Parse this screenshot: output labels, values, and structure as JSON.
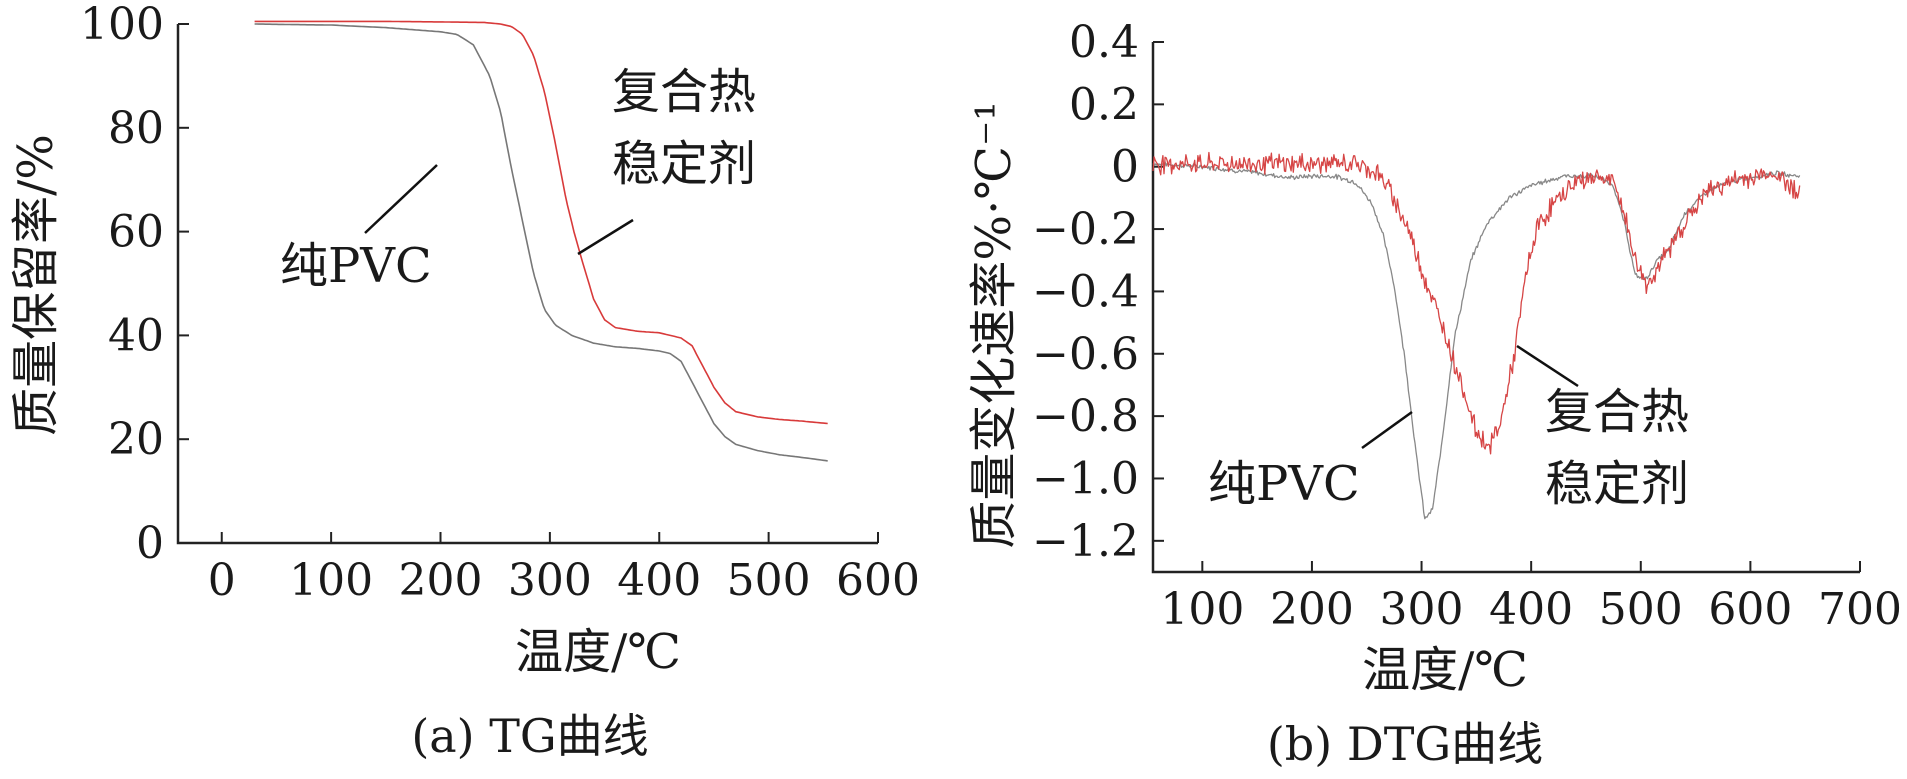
{
  "chart_data": [
    {
      "type": "line",
      "caption": "(a) TG曲线",
      "xlabel": "温度/℃",
      "ylabel": "质量保留率/%",
      "xlim": [
        -40,
        600
      ],
      "ylim": [
        0,
        100
      ],
      "xticks": [
        0,
        100,
        200,
        300,
        400,
        500,
        600
      ],
      "yticks": [
        0,
        20,
        40,
        60,
        80,
        100
      ],
      "grid": false,
      "legend": "none",
      "annotations": [
        {
          "text": "纯PVC",
          "series": "pure_pvc"
        },
        {
          "text": "复合热\n稳定剂",
          "series": "composite"
        }
      ],
      "series": [
        {
          "key": "pure_pvc",
          "color": "#777777",
          "points": [
            [
              30,
              100
            ],
            [
              60,
              99.9
            ],
            [
              100,
              99.8
            ],
            [
              150,
              99.3
            ],
            [
              200,
              98.5
            ],
            [
              215,
              98.0
            ],
            [
              230,
              96
            ],
            [
              245,
              90
            ],
            [
              255,
              83
            ],
            [
              265,
              72
            ],
            [
              275,
              62
            ],
            [
              285,
              52
            ],
            [
              295,
              45
            ],
            [
              305,
              42
            ],
            [
              320,
              40
            ],
            [
              340,
              38.5
            ],
            [
              360,
              37.8
            ],
            [
              380,
              37.5
            ],
            [
              400,
              37
            ],
            [
              410,
              36.5
            ],
            [
              420,
              35
            ],
            [
              430,
              31
            ],
            [
              440,
              27
            ],
            [
              450,
              23
            ],
            [
              460,
              20.5
            ],
            [
              470,
              19
            ],
            [
              490,
              17.8
            ],
            [
              510,
              17
            ],
            [
              530,
              16.5
            ],
            [
              555,
              15.8
            ]
          ]
        },
        {
          "key": "composite",
          "color": "#d83a3a",
          "points": [
            [
              30,
              100.5
            ],
            [
              80,
              100.5
            ],
            [
              150,
              100.5
            ],
            [
              200,
              100.4
            ],
            [
              240,
              100.3
            ],
            [
              255,
              100
            ],
            [
              265,
              99.5
            ],
            [
              275,
              98
            ],
            [
              285,
              94
            ],
            [
              295,
              87
            ],
            [
              305,
              77
            ],
            [
              315,
              66
            ],
            [
              322,
              60
            ],
            [
              330,
              54
            ],
            [
              340,
              47
            ],
            [
              350,
              43
            ],
            [
              360,
              41.5
            ],
            [
              380,
              40.8
            ],
            [
              400,
              40.5
            ],
            [
              420,
              39.5
            ],
            [
              430,
              38
            ],
            [
              440,
              34
            ],
            [
              450,
              30
            ],
            [
              460,
              27
            ],
            [
              470,
              25.3
            ],
            [
              490,
              24.3
            ],
            [
              510,
              23.8
            ],
            [
              530,
              23.5
            ],
            [
              555,
              23
            ]
          ]
        }
      ]
    },
    {
      "type": "line",
      "caption": "(b) DTG曲线",
      "xlabel": "温度/℃",
      "ylabel": "质量变化速率%·℃⁻¹",
      "xlim": [
        55,
        700
      ],
      "ylim": [
        -1.3,
        0.4
      ],
      "xticks": [
        100,
        200,
        300,
        400,
        500,
        600,
        700
      ],
      "yticks": [
        0.4,
        0.2,
        0,
        -0.2,
        -0.4,
        -0.6,
        -0.8,
        -1.0,
        -1.2
      ],
      "ytick_labels": [
        "0.4",
        "0.2",
        "0",
        "−0.2",
        "−0.4",
        "−0.6",
        "−0.8",
        "−1.0",
        "−1.2"
      ],
      "grid": false,
      "legend": "none",
      "annotations": [
        {
          "text": "纯PVC",
          "series": "pure_pvc"
        },
        {
          "text": "复合热\n稳定剂",
          "series": "composite"
        }
      ],
      "series": [
        {
          "key": "pure_pvc",
          "color": "#888888",
          "noise": 0.006,
          "points": [
            [
              55,
              0.01
            ],
            [
              100,
              0.0
            ],
            [
              150,
              -0.02
            ],
            [
              180,
              -0.035
            ],
            [
              200,
              -0.03
            ],
            [
              220,
              -0.03
            ],
            [
              240,
              -0.05
            ],
            [
              255,
              -0.12
            ],
            [
              265,
              -0.22
            ],
            [
              275,
              -0.38
            ],
            [
              285,
              -0.62
            ],
            [
              295,
              -0.92
            ],
            [
              303,
              -1.13
            ],
            [
              310,
              -1.1
            ],
            [
              318,
              -0.9
            ],
            [
              330,
              -0.55
            ],
            [
              345,
              -0.3
            ],
            [
              360,
              -0.18
            ],
            [
              380,
              -0.1
            ],
            [
              400,
              -0.06
            ],
            [
              430,
              -0.03
            ],
            [
              460,
              -0.03
            ],
            [
              475,
              -0.06
            ],
            [
              485,
              -0.18
            ],
            [
              495,
              -0.35
            ],
            [
              505,
              -0.36
            ],
            [
              515,
              -0.3
            ],
            [
              525,
              -0.27
            ],
            [
              540,
              -0.15
            ],
            [
              560,
              -0.08
            ],
            [
              580,
              -0.05
            ],
            [
              620,
              -0.02
            ],
            [
              645,
              -0.03
            ]
          ]
        },
        {
          "key": "composite",
          "color": "#d64545",
          "noise": 0.025,
          "points": [
            [
              55,
              0.01
            ],
            [
              100,
              0.01
            ],
            [
              150,
              0.01
            ],
            [
              200,
              0.01
            ],
            [
              240,
              0.01
            ],
            [
              260,
              -0.02
            ],
            [
              275,
              -0.1
            ],
            [
              290,
              -0.22
            ],
            [
              305,
              -0.38
            ],
            [
              320,
              -0.52
            ],
            [
              335,
              -0.68
            ],
            [
              350,
              -0.85
            ],
            [
              362,
              -0.9
            ],
            [
              372,
              -0.82
            ],
            [
              385,
              -0.6
            ],
            [
              395,
              -0.35
            ],
            [
              405,
              -0.2
            ],
            [
              420,
              -0.12
            ],
            [
              440,
              -0.05
            ],
            [
              460,
              -0.03
            ],
            [
              475,
              -0.05
            ],
            [
              485,
              -0.15
            ],
            [
              495,
              -0.3
            ],
            [
              505,
              -0.38
            ],
            [
              515,
              -0.33
            ],
            [
              525,
              -0.27
            ],
            [
              540,
              -0.18
            ],
            [
              560,
              -0.08
            ],
            [
              580,
              -0.05
            ],
            [
              620,
              -0.02
            ],
            [
              645,
              -0.08
            ]
          ]
        }
      ]
    }
  ]
}
